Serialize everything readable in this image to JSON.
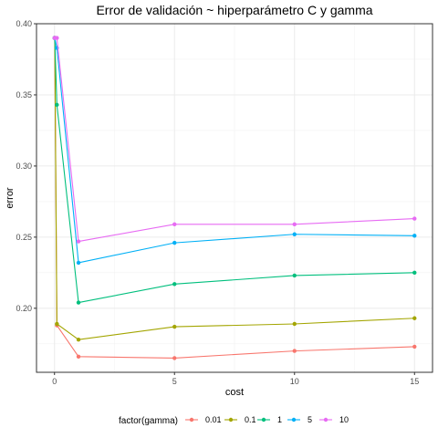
{
  "chart_data": {
    "type": "line",
    "title": "Error de validación ~ hiperparámetro C y gamma",
    "xlabel": "cost",
    "ylabel": "error",
    "xlim": [
      -0.75,
      15.75
    ],
    "ylim": [
      0.155,
      0.4
    ],
    "x_ticks": [
      0,
      5,
      10,
      15
    ],
    "y_ticks": [
      0.2,
      0.25,
      0.3,
      0.35,
      0.4
    ],
    "x_tick_labels": [
      "0",
      "5",
      "10",
      "15"
    ],
    "y_tick_labels": [
      "0.20",
      "0.25",
      "0.30",
      "0.35",
      "0.40"
    ],
    "grid": true,
    "legend_position": "bottom",
    "legend_title": "factor(gamma)",
    "x": [
      0.001,
      0.01,
      0.1,
      1,
      5,
      10,
      15
    ],
    "series": [
      {
        "name": "0.01",
        "color": "#F8766D",
        "values": [
          0.39,
          0.39,
          0.188,
          0.166,
          0.165,
          0.17,
          0.173
        ]
      },
      {
        "name": "0.1",
        "color": "#A3A500",
        "values": [
          0.39,
          0.39,
          0.189,
          0.178,
          0.187,
          0.189,
          0.193
        ]
      },
      {
        "name": "1",
        "color": "#00BF7D",
        "values": [
          0.39,
          0.39,
          0.343,
          0.204,
          0.217,
          0.223,
          0.225
        ]
      },
      {
        "name": "5",
        "color": "#00B0F6",
        "values": [
          0.39,
          0.39,
          0.383,
          0.232,
          0.246,
          0.252,
          0.251
        ]
      },
      {
        "name": "10",
        "color": "#E76BF3",
        "values": [
          0.39,
          0.39,
          0.39,
          0.247,
          0.259,
          0.259,
          0.263
        ]
      }
    ]
  }
}
